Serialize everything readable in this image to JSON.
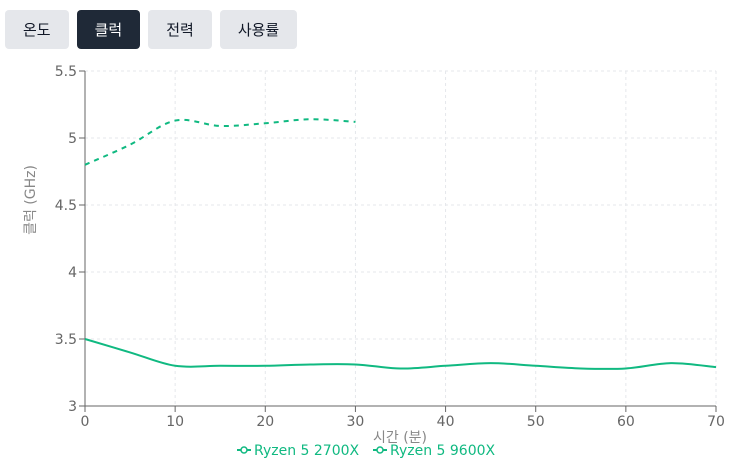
{
  "tabs": [
    {
      "label": "온도",
      "active": false
    },
    {
      "label": "클럭",
      "active": true
    },
    {
      "label": "전력",
      "active": false
    },
    {
      "label": "사용률",
      "active": false
    }
  ],
  "colors": {
    "series": "#10b981",
    "grid": "#e5e7eb",
    "axis": "#666666",
    "tab_active": "#1f2937",
    "tab_inactive": "#e5e7eb"
  },
  "chart_data": {
    "type": "line",
    "title": "",
    "xlabel": "시간 (분)",
    "ylabel": "클럭 (GHz)",
    "xlim": [
      0,
      70
    ],
    "ylim": [
      3,
      5.5
    ],
    "x_ticks": [
      "0",
      "10",
      "20",
      "30",
      "40",
      "50",
      "60",
      "70"
    ],
    "y_ticks": [
      "3",
      "3.5",
      "4",
      "4.5",
      "5",
      "5.5"
    ],
    "grid": true,
    "legend_position": "bottom",
    "series": [
      {
        "name": "Ryzen 5 2700X",
        "style": "solid",
        "x": [
          0,
          5,
          10,
          15,
          20,
          25,
          30,
          35,
          40,
          45,
          50,
          55,
          60,
          65,
          70
        ],
        "y": [
          3.5,
          3.4,
          3.3,
          3.3,
          3.3,
          3.31,
          3.31,
          3.28,
          3.3,
          3.32,
          3.3,
          3.28,
          3.28,
          3.32,
          3.29
        ]
      },
      {
        "name": "Ryzen 5 9600X",
        "style": "dashed",
        "x": [
          0,
          5,
          10,
          15,
          20,
          25,
          30
        ],
        "y": [
          4.8,
          4.95,
          5.13,
          5.09,
          5.11,
          5.14,
          5.12
        ]
      }
    ]
  }
}
